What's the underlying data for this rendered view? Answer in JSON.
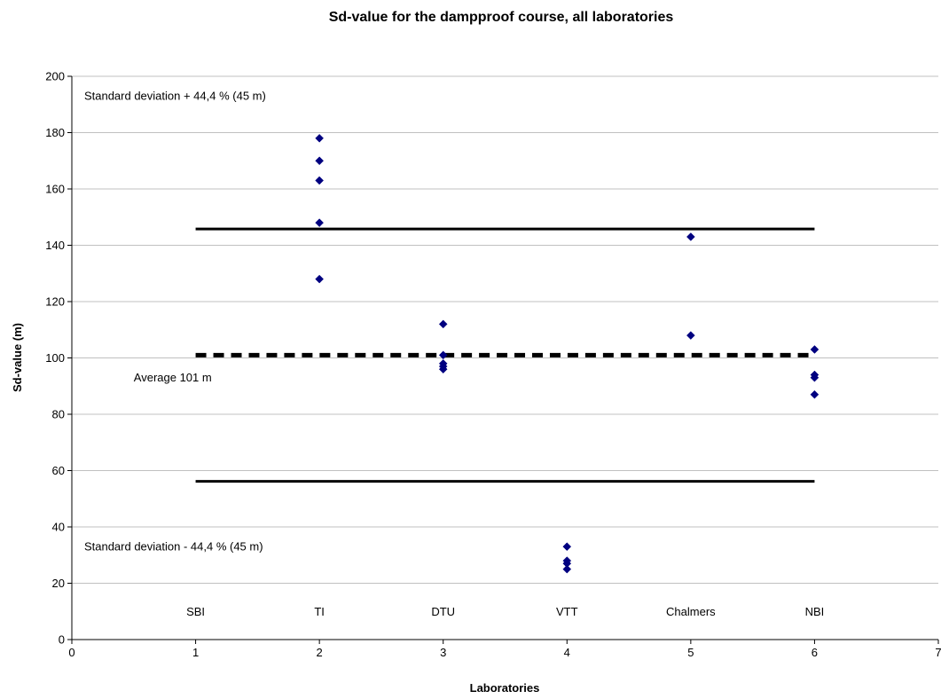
{
  "chart_data": {
    "type": "scatter",
    "title": "Sd-value for the dampproof course, all laboratories",
    "xlabel": "Laboratories",
    "ylabel": "Sd-value (m)",
    "xlim": [
      0,
      7
    ],
    "ylim": [
      0,
      200
    ],
    "x_ticks": [
      0,
      1,
      2,
      3,
      4,
      5,
      6,
      7
    ],
    "y_ticks": [
      0,
      20,
      40,
      60,
      80,
      100,
      120,
      140,
      160,
      180,
      200
    ],
    "grid": "horizontal",
    "series": [
      {
        "marker": "diamond",
        "color": "#000080",
        "points": [
          [
            2,
            178
          ],
          [
            2,
            170
          ],
          [
            2,
            163
          ],
          [
            2,
            148
          ],
          [
            2,
            128
          ],
          [
            3,
            112
          ],
          [
            3,
            101
          ],
          [
            3,
            98
          ],
          [
            3,
            97
          ],
          [
            3,
            96
          ],
          [
            4,
            33
          ],
          [
            4,
            28
          ],
          [
            4,
            27
          ],
          [
            4,
            25
          ],
          [
            5,
            143
          ],
          [
            5,
            108
          ],
          [
            6,
            103
          ],
          [
            6,
            94
          ],
          [
            6,
            93
          ],
          [
            6,
            87
          ]
        ]
      }
    ],
    "reference_lines": [
      {
        "kind": "upper",
        "y": 145.8,
        "x_range": [
          1,
          6
        ],
        "style": "solid",
        "color": "#000000"
      },
      {
        "kind": "average",
        "y": 101,
        "x_range": [
          1,
          6
        ],
        "style": "dashed",
        "color": "#000000"
      },
      {
        "kind": "lower",
        "y": 56.2,
        "x_range": [
          1,
          6
        ],
        "style": "solid",
        "color": "#000000"
      }
    ],
    "annotations": [
      {
        "text": "Standard deviation + 44,4 % (45 m)",
        "x": 0.1,
        "y": 193
      },
      {
        "text": "Average 101 m",
        "x": 0.5,
        "y": 93
      },
      {
        "text": "Standard deviation - 44,4 % (45 m)",
        "x": 0.1,
        "y": 33
      }
    ],
    "category_labels": [
      {
        "text": "SBI",
        "x": 1,
        "y": 10
      },
      {
        "text": "TI",
        "x": 2,
        "y": 10
      },
      {
        "text": "DTU",
        "x": 3,
        "y": 10
      },
      {
        "text": "VTT",
        "x": 4,
        "y": 10
      },
      {
        "text": "Chalmers",
        "x": 5,
        "y": 10
      },
      {
        "text": "NBI",
        "x": 6,
        "y": 10
      }
    ]
  }
}
